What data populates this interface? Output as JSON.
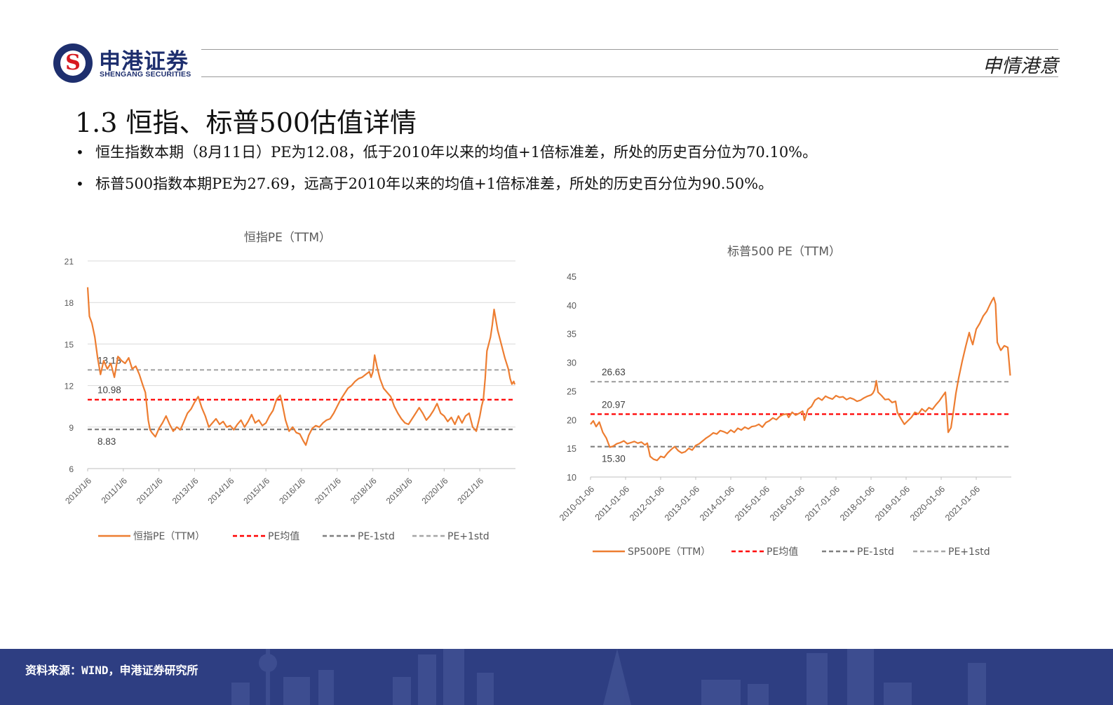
{
  "header": {
    "brand_cn": "申港证券",
    "brand_en": "SHENGANG SECURITIES",
    "logo_letter": "S",
    "tagline": "申情港意"
  },
  "title": "1.3 恒指、标普500估值详情",
  "bullets": [
    "恒生指数本期（8月11日）PE为12.08，低于2010年以来的均值+1倍标准差，所处的历史百分位为70.10%。",
    "标普500指数本期PE为27.69，远高于2010年以来的均值+1倍标准差，所处的历史百分位为90.50%。"
  ],
  "footer": {
    "source": "资料来源：WIND，申港证券研究所"
  },
  "colors": {
    "series": "#ed7d31",
    "mean": "#ff0000",
    "minus_std": "#7f7f7f",
    "plus_std": "#a6a6a6",
    "brand": "#1e2f6e",
    "footer": "#2e3e82"
  },
  "chart_data": [
    {
      "type": "line",
      "title": "恒指PE（TTM）",
      "x_ticks": [
        "2010/1/6",
        "2011/1/6",
        "2012/1/6",
        "2013/1/6",
        "2014/1/6",
        "2015/1/6",
        "2016/1/6",
        "2017/1/6",
        "2018/1/6",
        "2019/1/6",
        "2020/1/6",
        "2021/1/6"
      ],
      "ylim": [
        6,
        21
      ],
      "y_ticks": [
        6,
        9,
        12,
        15,
        18,
        21
      ],
      "grid": true,
      "legend_position": "bottom",
      "reference_lines": [
        {
          "name": "PE均值",
          "value": 10.98,
          "label": "10.98"
        },
        {
          "name": "PE-1std",
          "value": 8.83,
          "label": "8.83"
        },
        {
          "name": "PE+1std",
          "value": 13.13,
          "label": "13.13"
        }
      ],
      "series": [
        {
          "name": "恒指PE（TTM）",
          "x": [
            2010.0,
            2010.05,
            2010.12,
            2010.2,
            2010.28,
            2010.36,
            2010.45,
            2010.55,
            2010.65,
            2010.75,
            2010.85,
            2010.95,
            2011.05,
            2011.15,
            2011.25,
            2011.35,
            2011.45,
            2011.55,
            2011.62,
            2011.7,
            2011.75,
            2011.8,
            2011.9,
            2012.0,
            2012.1,
            2012.2,
            2012.3,
            2012.4,
            2012.5,
            2012.6,
            2012.7,
            2012.8,
            2012.9,
            2013.0,
            2013.1,
            2013.2,
            2013.3,
            2013.4,
            2013.5,
            2013.6,
            2013.7,
            2013.8,
            2013.9,
            2014.0,
            2014.1,
            2014.2,
            2014.3,
            2014.4,
            2014.5,
            2014.6,
            2014.7,
            2014.8,
            2014.9,
            2015.0,
            2015.1,
            2015.2,
            2015.3,
            2015.4,
            2015.45,
            2015.55,
            2015.65,
            2015.75,
            2015.85,
            2015.95,
            2016.05,
            2016.12,
            2016.2,
            2016.3,
            2016.4,
            2016.5,
            2016.6,
            2016.7,
            2016.8,
            2016.9,
            2017.0,
            2017.1,
            2017.2,
            2017.3,
            2017.4,
            2017.5,
            2017.6,
            2017.7,
            2017.8,
            2017.9,
            2017.95,
            2018.0,
            2018.05,
            2018.12,
            2018.2,
            2018.3,
            2018.4,
            2018.5,
            2018.6,
            2018.7,
            2018.8,
            2018.9,
            2019.0,
            2019.1,
            2019.2,
            2019.3,
            2019.4,
            2019.5,
            2019.6,
            2019.7,
            2019.8,
            2019.9,
            2020.0,
            2020.1,
            2020.2,
            2020.3,
            2020.4,
            2020.5,
            2020.6,
            2020.7,
            2020.8,
            2020.9,
            2021.0,
            2021.05,
            2021.1,
            2021.15,
            2021.2,
            2021.25,
            2021.3,
            2021.35,
            2021.4,
            2021.5,
            2021.6,
            2021.7,
            2021.8,
            2021.85,
            2021.9,
            2021.95,
            2021.98
          ],
          "values": [
            19.1,
            17.0,
            16.5,
            15.5,
            14.0,
            12.8,
            13.8,
            13.2,
            13.6,
            12.6,
            14.1,
            13.8,
            13.6,
            14.0,
            13.2,
            13.4,
            12.8,
            12.0,
            11.5,
            9.5,
            8.8,
            8.6,
            8.3,
            8.9,
            9.3,
            9.8,
            9.2,
            8.7,
            9.0,
            8.8,
            9.4,
            10.0,
            10.3,
            10.8,
            11.2,
            10.4,
            9.8,
            9.0,
            9.3,
            9.6,
            9.2,
            9.4,
            9.0,
            9.1,
            8.8,
            9.2,
            9.5,
            9.0,
            9.4,
            9.9,
            9.3,
            9.5,
            9.1,
            9.3,
            9.8,
            10.2,
            11.0,
            11.3,
            10.8,
            9.5,
            8.7,
            9.0,
            8.6,
            8.5,
            8.0,
            7.7,
            8.4,
            8.9,
            9.1,
            9.0,
            9.3,
            9.5,
            9.6,
            10.0,
            10.5,
            11.0,
            11.4,
            11.8,
            12.0,
            12.3,
            12.5,
            12.6,
            12.8,
            13.0,
            12.6,
            13.0,
            14.2,
            13.3,
            12.5,
            11.8,
            11.5,
            11.2,
            10.5,
            10.0,
            9.6,
            9.3,
            9.2,
            9.6,
            10.0,
            10.4,
            10.0,
            9.5,
            9.8,
            10.2,
            10.7,
            10.0,
            9.8,
            9.4,
            9.7,
            9.2,
            9.8,
            9.3,
            9.8,
            10.0,
            9.0,
            8.7,
            9.8,
            10.5,
            11.0,
            12.5,
            14.5,
            15.0,
            15.5,
            16.4,
            17.5,
            16.0,
            15.0,
            14.0,
            13.2,
            12.5,
            12.1,
            12.3,
            12.08
          ]
        }
      ]
    },
    {
      "type": "line",
      "title": "标普500 PE（TTM）",
      "x_ticks": [
        "2010-01-06",
        "2011-01-06",
        "2012-01-06",
        "2013-01-06",
        "2014-01-06",
        "2015-01-06",
        "2016-01-06",
        "2017-01-06",
        "2018-01-06",
        "2019-01-06",
        "2020-01-06",
        "2021-01-06"
      ],
      "ylim": [
        10,
        45
      ],
      "y_ticks": [
        10,
        15,
        20,
        25,
        30,
        35,
        40,
        45
      ],
      "grid": false,
      "legend_position": "bottom",
      "reference_lines": [
        {
          "name": "PE均值",
          "value": 20.97,
          "label": "20.97"
        },
        {
          "name": "PE-1std",
          "value": 15.3,
          "label": "15.30"
        },
        {
          "name": "PE+1std",
          "value": 26.63,
          "label": "26.63"
        }
      ],
      "series": [
        {
          "name": "SP500PE（TTM）",
          "x": [
            2010.0,
            2010.08,
            2010.16,
            2010.25,
            2010.35,
            2010.45,
            2010.55,
            2010.65,
            2010.75,
            2010.85,
            2010.95,
            2011.05,
            2011.15,
            2011.25,
            2011.35,
            2011.45,
            2011.55,
            2011.62,
            2011.7,
            2011.8,
            2011.9,
            2012.0,
            2012.1,
            2012.2,
            2012.3,
            2012.4,
            2012.5,
            2012.6,
            2012.7,
            2012.8,
            2012.9,
            2013.0,
            2013.1,
            2013.2,
            2013.3,
            2013.4,
            2013.5,
            2013.6,
            2013.7,
            2013.8,
            2013.9,
            2014.0,
            2014.1,
            2014.2,
            2014.3,
            2014.4,
            2014.5,
            2014.6,
            2014.7,
            2014.8,
            2014.9,
            2015.0,
            2015.1,
            2015.2,
            2015.3,
            2015.4,
            2015.5,
            2015.6,
            2015.65,
            2015.75,
            2015.85,
            2015.95,
            2016.05,
            2016.1,
            2016.2,
            2016.3,
            2016.4,
            2016.5,
            2016.6,
            2016.7,
            2016.8,
            2016.9,
            2017.0,
            2017.1,
            2017.2,
            2017.3,
            2017.4,
            2017.5,
            2017.6,
            2017.7,
            2017.8,
            2017.9,
            2018.0,
            2018.05,
            2018.1,
            2018.15,
            2018.2,
            2018.3,
            2018.4,
            2018.5,
            2018.6,
            2018.7,
            2018.75,
            2018.85,
            2018.95,
            2019.05,
            2019.15,
            2019.25,
            2019.35,
            2019.45,
            2019.55,
            2019.65,
            2019.75,
            2019.85,
            2019.95,
            2020.05,
            2020.12,
            2020.15,
            2020.2,
            2020.28,
            2020.35,
            2020.42,
            2020.5,
            2020.6,
            2020.7,
            2020.8,
            2020.85,
            2020.9,
            2021.0,
            2021.1,
            2021.2,
            2021.3,
            2021.4,
            2021.45,
            2021.5,
            2021.55,
            2021.6,
            2021.7,
            2021.8,
            2021.9,
            2021.97
          ],
          "values": [
            19.2,
            19.8,
            18.8,
            19.6,
            17.8,
            16.8,
            15.2,
            15.4,
            15.8,
            16.0,
            16.3,
            15.8,
            16.0,
            16.2,
            15.9,
            16.1,
            15.6,
            15.9,
            13.6,
            13.1,
            12.9,
            13.6,
            13.4,
            14.2,
            14.8,
            15.3,
            14.6,
            14.2,
            14.4,
            15.0,
            14.7,
            15.5,
            15.8,
            16.3,
            16.8,
            17.2,
            17.7,
            17.5,
            18.1,
            17.9,
            17.6,
            18.2,
            17.8,
            18.5,
            18.2,
            18.7,
            18.4,
            18.8,
            18.9,
            19.2,
            18.7,
            19.5,
            19.8,
            20.3,
            20.0,
            20.6,
            20.9,
            21.0,
            20.4,
            21.3,
            20.8,
            21.1,
            21.5,
            19.9,
            21.8,
            22.3,
            23.4,
            23.8,
            23.4,
            24.1,
            23.8,
            23.6,
            24.2,
            23.9,
            24.0,
            23.5,
            23.8,
            23.6,
            23.2,
            23.4,
            23.8,
            24.1,
            24.3,
            24.6,
            25.2,
            26.8,
            24.8,
            24.2,
            23.5,
            23.6,
            23.0,
            23.2,
            21.3,
            20.2,
            19.2,
            19.8,
            20.4,
            21.3,
            21.0,
            21.9,
            21.4,
            22.1,
            21.8,
            22.6,
            23.3,
            24.2,
            24.8,
            22.5,
            17.8,
            18.6,
            21.5,
            24.6,
            27.3,
            30.2,
            32.8,
            35.2,
            34.0,
            33.1,
            35.8,
            36.8,
            38.1,
            38.9,
            40.2,
            40.8,
            41.3,
            40.2,
            33.5,
            32.1,
            32.9,
            32.6,
            27.69
          ]
        }
      ]
    }
  ]
}
